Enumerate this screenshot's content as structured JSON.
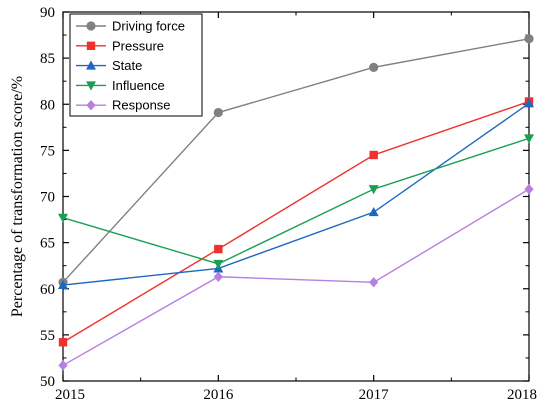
{
  "chart_data": {
    "type": "line",
    "x": [
      2015,
      2016,
      2017,
      2018
    ],
    "ylabel": "Percentage of transformation score/%",
    "xlabel": "",
    "ylim": [
      50,
      90
    ],
    "yticks": [
      50,
      55,
      60,
      65,
      70,
      75,
      80,
      85,
      90
    ],
    "xticks": [
      2015,
      2016,
      2017,
      2018
    ],
    "grid": false,
    "legend_position": "top-left",
    "series": [
      {
        "name": "Driving force",
        "values": [
          60.7,
          79.1,
          84.0,
          87.1
        ],
        "color": "#808080",
        "marker": "circle"
      },
      {
        "name": "Pressure",
        "values": [
          54.2,
          64.3,
          74.5,
          80.3
        ],
        "color": "#f0302c",
        "marker": "square"
      },
      {
        "name": "State",
        "values": [
          60.4,
          62.2,
          68.3,
          80.1
        ],
        "color": "#1e68c0",
        "marker": "triangle-up"
      },
      {
        "name": "Influence",
        "values": [
          67.7,
          62.7,
          70.8,
          76.3
        ],
        "color": "#1aa055",
        "marker": "triangle-down"
      },
      {
        "name": "Response",
        "values": [
          51.7,
          61.3,
          60.7,
          70.8
        ],
        "color": "#b67fe0",
        "marker": "diamond"
      }
    ]
  }
}
